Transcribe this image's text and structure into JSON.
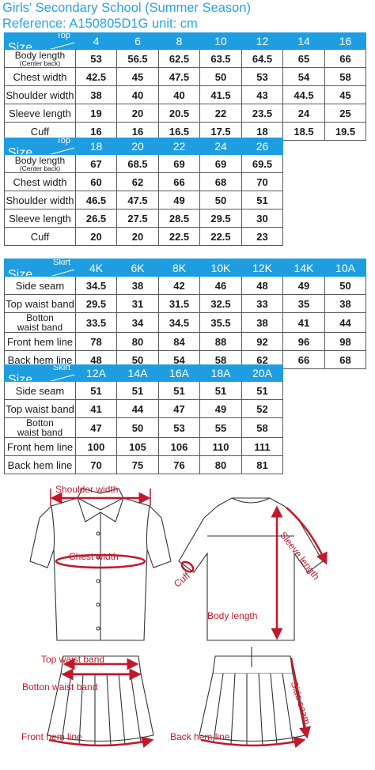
{
  "header": {
    "title": "Girls' Secondary School (Summer Season)",
    "reference": "Reference: A150805D1G      unit: cm"
  },
  "top_table_1": {
    "corner_main": "Size",
    "corner_sub": "Top",
    "sizes": [
      "4",
      "6",
      "8",
      "10",
      "12",
      "14",
      "16"
    ],
    "rows": [
      {
        "label": "Body length",
        "sub": "(Center back)",
        "values": [
          "53",
          "56.5",
          "62.5",
          "63.5",
          "64.5",
          "65",
          "66"
        ]
      },
      {
        "label": "Chest width",
        "values": [
          "42.5",
          "45",
          "47.5",
          "50",
          "53",
          "54",
          "58"
        ]
      },
      {
        "label": "Shoulder width",
        "values": [
          "38",
          "40",
          "40",
          "41.5",
          "43",
          "44.5",
          "45"
        ]
      },
      {
        "label": "Sleeve length",
        "values": [
          "19",
          "20",
          "20.5",
          "22",
          "23.5",
          "24",
          "25"
        ]
      },
      {
        "label": "Cuff",
        "values": [
          "16",
          "16",
          "16.5",
          "17.5",
          "18",
          "18.5",
          "19.5"
        ]
      }
    ]
  },
  "top_table_2": {
    "corner_main": "Size",
    "corner_sub": "Top",
    "sizes": [
      "18",
      "20",
      "22",
      "24",
      "26"
    ],
    "rows": [
      {
        "label": "Body length",
        "sub": "(Center back)",
        "values": [
          "67",
          "68.5",
          "69",
          "69",
          "69.5"
        ]
      },
      {
        "label": "Chest width",
        "values": [
          "60",
          "62",
          "66",
          "68",
          "70"
        ]
      },
      {
        "label": "Shoulder width",
        "values": [
          "46.5",
          "47.5",
          "49",
          "50",
          "51"
        ]
      },
      {
        "label": "Sleeve length",
        "values": [
          "26.5",
          "27.5",
          "28.5",
          "29.5",
          "30"
        ]
      },
      {
        "label": "Cuff",
        "values": [
          "20",
          "20",
          "22.5",
          "22.5",
          "23"
        ]
      }
    ]
  },
  "skirt_table_1": {
    "corner_main": "Size",
    "corner_sub": "Skirt",
    "sizes": [
      "4K",
      "6K",
      "8K",
      "10K",
      "12K",
      "14K",
      "10A"
    ],
    "rows": [
      {
        "label": "Side seam",
        "values": [
          "34.5",
          "38",
          "42",
          "46",
          "48",
          "49",
          "50"
        ]
      },
      {
        "label": "Top waist band",
        "values": [
          "29.5",
          "31",
          "31.5",
          "32.5",
          "33",
          "35",
          "38"
        ]
      },
      {
        "label": "Botton",
        "label2": "waist band",
        "values": [
          "33.5",
          "34",
          "34.5",
          "35.5",
          "38",
          "41",
          "44"
        ]
      },
      {
        "label": "Front hem line",
        "values": [
          "78",
          "80",
          "84",
          "88",
          "92",
          "96",
          "98"
        ]
      },
      {
        "label": "Back hem line",
        "values": [
          "48",
          "50",
          "54",
          "58",
          "62",
          "66",
          "68"
        ]
      }
    ]
  },
  "skirt_table_2": {
    "corner_main": "Size",
    "corner_sub": "Skirt",
    "sizes": [
      "12A",
      "14A",
      "16A",
      "18A",
      "20A"
    ],
    "rows": [
      {
        "label": "Side seam",
        "values": [
          "51",
          "51",
          "51",
          "51",
          "51"
        ]
      },
      {
        "label": "Top waist band",
        "values": [
          "41",
          "44",
          "47",
          "49",
          "52"
        ]
      },
      {
        "label": "Botton",
        "label2": "waist band",
        "values": [
          "47",
          "50",
          "53",
          "55",
          "58"
        ]
      },
      {
        "label": "Front hem line",
        "values": [
          "100",
          "105",
          "106",
          "110",
          "111"
        ]
      },
      {
        "label": "Back hem line",
        "values": [
          "70",
          "75",
          "76",
          "80",
          "81"
        ]
      }
    ]
  },
  "diagram_labels": {
    "shoulder_width": "Shoulder width",
    "chest_width": "Chest width",
    "sleeve_length": "Sleeve length",
    "cuff": "Cuff",
    "body_length": "Body length",
    "top_waist_band": "Top waist band",
    "botton_waist_band": "Botton waist band",
    "side_seam": "Side seam",
    "front_hem_line": "Front hem line",
    "back_hem_line": "Back hem line"
  },
  "colors": {
    "header_blue": "#1f9de1",
    "title_blue": "#29a3e6",
    "measure_red": "#c0192a"
  }
}
